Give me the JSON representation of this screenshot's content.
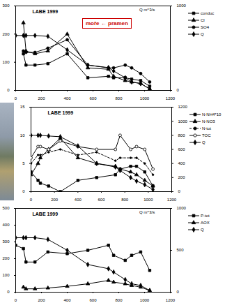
{
  "chart_data": [
    {
      "type": "line",
      "title": "LABE 1999",
      "y2label": "Q m^3/s",
      "annotation": "moře ← pramen",
      "x": [
        0,
        60,
        80,
        150,
        250,
        400,
        560,
        720,
        760,
        850,
        900,
        970,
        1040
      ],
      "xlim": [
        0,
        1200
      ],
      "xticks": [
        0,
        200,
        400,
        600,
        800,
        1000,
        1200
      ],
      "ylim": [
        0,
        300
      ],
      "yticks": [
        0,
        100,
        200,
        300
      ],
      "y2lim": [
        0,
        1000
      ],
      "y2ticks": [
        0,
        1000
      ],
      "grid": false,
      "legend": "right",
      "series": [
        {
          "name": "conduc",
          "color": "#000000",
          "marker": "square",
          "values": [
            null,
            130,
            90,
            90,
            95,
            130,
            45,
            50,
            45,
            45,
            40,
            35,
            15
          ]
        },
        {
          "name": "Cl",
          "color": "#000000",
          "marker": "triangle",
          "values": [
            null,
            240,
            140,
            130,
            140,
            200,
            80,
            75,
            50,
            35,
            30,
            25,
            5
          ]
        },
        {
          "name": "SO4",
          "color": "#000000",
          "marker": "circle",
          "values": [
            null,
            140,
            135,
            135,
            150,
            180,
            90,
            80,
            80,
            90,
            80,
            60,
            30
          ]
        },
        {
          "name": "Q",
          "color": "#000000",
          "marker": "diamond",
          "axis": "y2",
          "values": [
            650,
            650,
            650,
            650,
            640,
            480,
            300,
            270,
            230,
            150,
            100,
            80,
            20
          ]
        }
      ]
    },
    {
      "type": "line",
      "title": "LABE 1999",
      "x": [
        0,
        60,
        80,
        150,
        250,
        400,
        560,
        720,
        760,
        850,
        900,
        970,
        1040
      ],
      "xlim": [
        0,
        1200
      ],
      "xticks": [
        0,
        200,
        400,
        600,
        800,
        1000,
        1200
      ],
      "ylim": [
        0,
        15
      ],
      "yticks": [
        0,
        5,
        10,
        15
      ],
      "y2lim": [
        0,
        1200
      ],
      "y2ticks": [
        0,
        200,
        400,
        600,
        800,
        1000,
        1200
      ],
      "grid": false,
      "legend": "right",
      "series": [
        {
          "name": "N-NH4*10",
          "color": "#000000",
          "marker": "square",
          "values": [
            3.5,
            2,
            1.5,
            1,
            0,
            2,
            2.5,
            3,
            4,
            4.5,
            4.5,
            3.5,
            1
          ]
        },
        {
          "name": "N-NO3",
          "color": "#000000",
          "marker": "triangle",
          "values": [
            3,
            5,
            6,
            7.5,
            9.5,
            6,
            5,
            4.5,
            4,
            3.5,
            3,
            2,
            1
          ]
        },
        {
          "name": "N-tot",
          "color": "#000000",
          "marker": "circle",
          "line_style": "dashed",
          "values": [
            5,
            6.5,
            6.5,
            7,
            7.5,
            6.5,
            7,
            5.5,
            6,
            6,
            6,
            5,
            3
          ]
        },
        {
          "name": "TOC",
          "color": "#000000",
          "marker": "circle-open",
          "values": [
            6,
            8,
            8,
            7.5,
            9,
            8,
            7.5,
            7.5,
            10,
            7.5,
            8,
            7.5,
            4
          ]
        },
        {
          "name": "Q",
          "color": "#000000",
          "marker": "diamond",
          "axis": "y2",
          "values": [
            800,
            800,
            800,
            790,
            780,
            650,
            400,
            350,
            300,
            200,
            150,
            100,
            30
          ]
        }
      ]
    },
    {
      "type": "line",
      "title": "LABE 1999",
      "y2label": "Q m^3/s",
      "x": [
        0,
        60,
        80,
        150,
        250,
        400,
        560,
        720,
        760,
        850,
        900,
        970,
        1040
      ],
      "xlim": [
        0,
        1200
      ],
      "xticks": [
        0,
        200,
        400,
        600,
        800,
        1000,
        1200
      ],
      "ylim": [
        0,
        500
      ],
      "yticks": [
        0,
        100,
        200,
        300,
        400,
        500
      ],
      "y2lim": [
        0,
        1000
      ],
      "y2ticks": [
        0,
        500,
        1000
      ],
      "grid": false,
      "legend": "right",
      "series": [
        {
          "name": "P-tot",
          "color": "#000000",
          "marker": "square",
          "values": [
            280,
            260,
            180,
            180,
            240,
            230,
            250,
            280,
            220,
            190,
            220,
            240,
            130
          ]
        },
        {
          "name": "AOX",
          "color": "#000000",
          "marker": "triangle",
          "values": [
            null,
            30,
            20,
            20,
            25,
            35,
            50,
            70,
            60,
            50,
            40,
            30,
            10
          ]
        },
        {
          "name": "Q",
          "color": "#000000",
          "marker": "diamond",
          "axis": "y2",
          "values": [
            650,
            650,
            650,
            650,
            630,
            500,
            330,
            280,
            240,
            150,
            100,
            80,
            20
          ]
        }
      ]
    }
  ]
}
